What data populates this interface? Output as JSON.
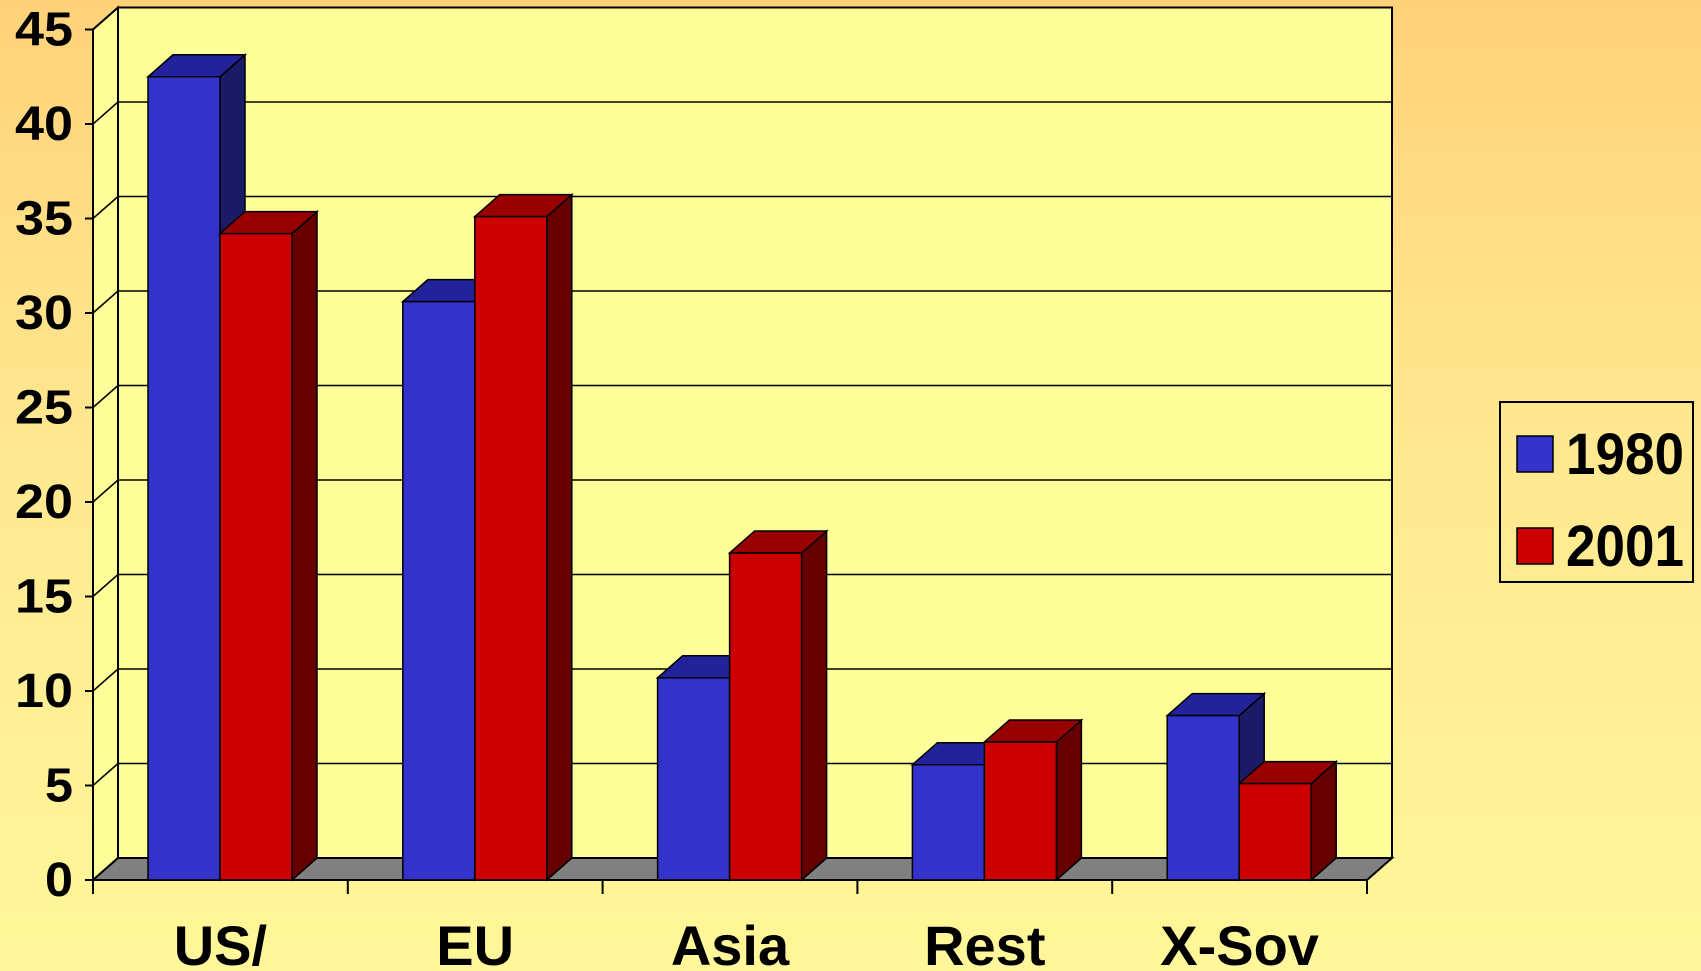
{
  "chart_data": {
    "type": "bar",
    "title": "",
    "xlabel": "",
    "ylabel": "",
    "categories": [
      "US/",
      "EU",
      "Asia",
      "Rest",
      "X-Sov"
    ],
    "series": [
      {
        "name": "1980",
        "values": [
          42.5,
          30.6,
          10.7,
          6.1,
          8.7
        ],
        "color": "#3333cc",
        "top_color": "#22229a",
        "side_color": "#1a1a66"
      },
      {
        "name": "2001",
        "values": [
          34.2,
          35.1,
          17.3,
          7.3,
          5.1
        ],
        "color": "#cc0000",
        "top_color": "#990000",
        "side_color": "#660000"
      }
    ],
    "ylim": [
      0,
      45
    ],
    "yticks": [
      0,
      5,
      10,
      15,
      20,
      25,
      30,
      35,
      40,
      45
    ],
    "grid": true,
    "legend_position": "right",
    "floor_color": "#808080",
    "plot_background": "#ffff99"
  }
}
